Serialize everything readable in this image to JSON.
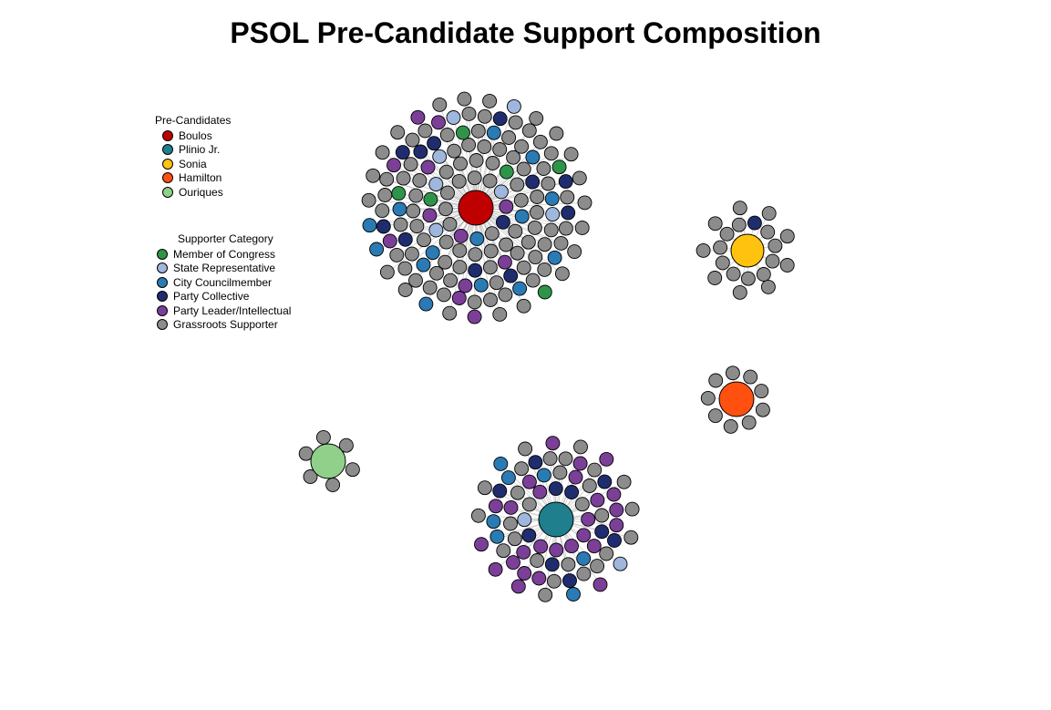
{
  "title": "PSOL Pre-Candidate Support Composition",
  "legend_candidates": {
    "title": "Pre-Candidates",
    "items": [
      {
        "label": "Boulos",
        "color": "#C00000"
      },
      {
        "label": "Plinio Jr.",
        "color": "#1F7F8C"
      },
      {
        "label": "Sonia",
        "color": "#FFC20E"
      },
      {
        "label": "Hamilton",
        "color": "#FF5010"
      },
      {
        "label": "Ouriques",
        "color": "#90D08A"
      }
    ]
  },
  "legend_categories": {
    "title": "Supporter Category",
    "items": [
      {
        "label": "Member of Congress",
        "color": "#2E9449"
      },
      {
        "label": "State Representative",
        "color": "#9FB7DD"
      },
      {
        "label": "City Councilmember",
        "color": "#2A7AB4"
      },
      {
        "label": "Party Collective",
        "color": "#1F2D6E"
      },
      {
        "label": "Party Leader/Intellectual",
        "color": "#7B3F98"
      },
      {
        "label": "Grassroots Supporter",
        "color": "#8C8C8C"
      }
    ]
  },
  "network": {
    "clusters": [
      {
        "candidate": "Boulos",
        "supporters": {
          "Member of Congress": 6,
          "State Representative": 7,
          "City Councilmember": 14,
          "Party Collective": 12,
          "Party Leader/Intellectual": 12,
          "Grassroots Supporter": 99
        }
      },
      {
        "candidate": "Plinio Jr.",
        "supporters": {
          "Member of Congress": 0,
          "State Representative": 2,
          "City Councilmember": 7,
          "Party Collective": 10,
          "Party Leader/Intellectual": 26,
          "Grassroots Supporter": 27
        }
      },
      {
        "candidate": "Sonia",
        "supporters": {
          "Member of Congress": 0,
          "State Representative": 0,
          "City Councilmember": 0,
          "Party Collective": 1,
          "Party Leader/Intellectual": 0,
          "Grassroots Supporter": 19
        }
      },
      {
        "candidate": "Hamilton",
        "supporters": {
          "Member of Congress": 0,
          "State Representative": 0,
          "City Councilmember": 0,
          "Party Collective": 0,
          "Party Leader/Intellectual": 0,
          "Grassroots Supporter": 9
        }
      },
      {
        "candidate": "Ouriques",
        "supporters": {
          "Member of Congress": 0,
          "State Representative": 0,
          "City Councilmember": 0,
          "Party Collective": 0,
          "Party Leader/Intellectual": 0,
          "Grassroots Supporter": 6
        }
      }
    ]
  }
}
